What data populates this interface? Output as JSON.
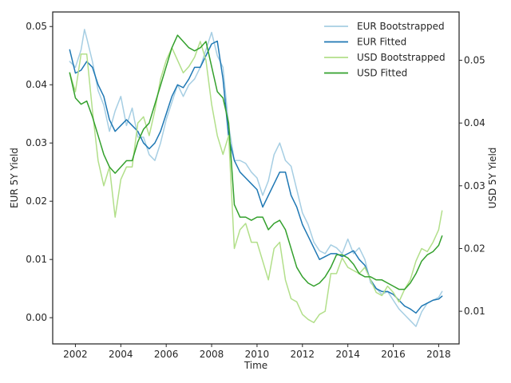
{
  "chart_data": {
    "type": "line",
    "xlabel": "Time",
    "ylabel_left": "EUR 5Y Yield",
    "ylabel_right": "USD 5Y Yield",
    "xlim": [
      2001.0,
      2018.9
    ],
    "ylim_left": [
      -0.0045,
      0.0525
    ],
    "ylim_right": [
      0.0048,
      0.0577
    ],
    "xticks": [
      2002,
      2004,
      2006,
      2008,
      2010,
      2012,
      2014,
      2016,
      2018
    ],
    "xtick_labels": [
      "2002",
      "2004",
      "2006",
      "2008",
      "2010",
      "2012",
      "2014",
      "2016",
      "2018"
    ],
    "yticks_left": [
      0.0,
      0.01,
      0.02,
      0.03,
      0.04,
      0.05
    ],
    "ytick_labels_left": [
      "0.00",
      "0.01",
      "0.02",
      "0.03",
      "0.04",
      "0.05"
    ],
    "yticks_right": [
      0.01,
      0.02,
      0.03,
      0.04,
      0.05
    ],
    "ytick_labels_right": [
      "0.01",
      "0.02",
      "0.03",
      "0.04",
      "0.05"
    ],
    "grid": false,
    "legend_position": "top-right",
    "series": [
      {
        "name": "EUR Bootstrapped",
        "axis": "left",
        "color": "#a6cee3",
        "x": [
          2001.75,
          2002.0,
          2002.25,
          2002.4,
          2002.5,
          2002.75,
          2003.0,
          2003.25,
          2003.5,
          2003.75,
          2004.0,
          2004.25,
          2004.5,
          2004.75,
          2005.0,
          2005.25,
          2005.5,
          2005.75,
          2006.0,
          2006.25,
          2006.5,
          2006.75,
          2007.0,
          2007.25,
          2007.5,
          2007.75,
          2008.0,
          2008.25,
          2008.5,
          2008.75,
          2009.0,
          2009.25,
          2009.5,
          2009.75,
          2010.0,
          2010.25,
          2010.5,
          2010.75,
          2011.0,
          2011.25,
          2011.5,
          2011.75,
          2012.0,
          2012.25,
          2012.5,
          2012.75,
          2013.0,
          2013.25,
          2013.5,
          2013.75,
          2014.0,
          2014.25,
          2014.5,
          2014.75,
          2015.0,
          2015.25,
          2015.5,
          2015.75,
          2016.0,
          2016.25,
          2016.5,
          2016.75,
          2017.0,
          2017.25,
          2017.5,
          2017.75,
          2018.0,
          2018.15
        ],
        "values": [
          0.044,
          0.043,
          0.046,
          0.0495,
          0.048,
          0.044,
          0.039,
          0.0365,
          0.032,
          0.0355,
          0.038,
          0.033,
          0.036,
          0.031,
          0.031,
          0.028,
          0.027,
          0.03,
          0.034,
          0.037,
          0.04,
          0.038,
          0.04,
          0.041,
          0.043,
          0.046,
          0.049,
          0.045,
          0.043,
          0.033,
          0.027,
          0.027,
          0.0265,
          0.025,
          0.024,
          0.021,
          0.0235,
          0.028,
          0.03,
          0.027,
          0.026,
          0.022,
          0.018,
          0.016,
          0.013,
          0.0115,
          0.011,
          0.0125,
          0.012,
          0.011,
          0.0135,
          0.011,
          0.012,
          0.01,
          0.006,
          0.005,
          0.004,
          0.0045,
          0.003,
          0.0015,
          0.0005,
          -0.0005,
          -0.0015,
          0.001,
          0.0025,
          0.003,
          0.0035,
          0.0045
        ]
      },
      {
        "name": "EUR Fitted",
        "axis": "left",
        "color": "#1f78b4",
        "x": [
          2001.75,
          2002.0,
          2002.25,
          2002.5,
          2002.75,
          2003.0,
          2003.25,
          2003.5,
          2003.75,
          2004.0,
          2004.25,
          2004.5,
          2004.75,
          2005.0,
          2005.25,
          2005.5,
          2005.75,
          2006.0,
          2006.25,
          2006.5,
          2006.75,
          2007.0,
          2007.25,
          2007.5,
          2007.75,
          2008.0,
          2008.25,
          2008.5,
          2008.75,
          2009.0,
          2009.25,
          2009.5,
          2009.75,
          2010.0,
          2010.25,
          2010.5,
          2010.75,
          2011.0,
          2011.25,
          2011.5,
          2011.75,
          2012.0,
          2012.25,
          2012.5,
          2012.75,
          2013.0,
          2013.25,
          2013.5,
          2013.75,
          2014.0,
          2014.25,
          2014.5,
          2014.75,
          2015.0,
          2015.25,
          2015.5,
          2015.75,
          2016.0,
          2016.25,
          2016.5,
          2016.75,
          2017.0,
          2017.25,
          2017.5,
          2017.75,
          2018.0,
          2018.15
        ],
        "values": [
          0.046,
          0.042,
          0.0425,
          0.044,
          0.043,
          0.04,
          0.038,
          0.034,
          0.032,
          0.033,
          0.034,
          0.033,
          0.032,
          0.03,
          0.029,
          0.03,
          0.032,
          0.035,
          0.038,
          0.04,
          0.0395,
          0.041,
          0.043,
          0.043,
          0.045,
          0.047,
          0.0475,
          0.041,
          0.031,
          0.027,
          0.025,
          0.024,
          0.023,
          0.022,
          0.019,
          0.021,
          0.023,
          0.025,
          0.025,
          0.021,
          0.019,
          0.016,
          0.014,
          0.012,
          0.01,
          0.0105,
          0.011,
          0.011,
          0.0105,
          0.011,
          0.0115,
          0.01,
          0.009,
          0.0065,
          0.005,
          0.0045,
          0.0045,
          0.004,
          0.003,
          0.002,
          0.0015,
          0.0008,
          0.002,
          0.0025,
          0.003,
          0.0032,
          0.0037
        ]
      },
      {
        "name": "USD Bootstrapped",
        "axis": "right",
        "color": "#b2df8a",
        "x": [
          2001.75,
          2002.0,
          2002.25,
          2002.5,
          2002.75,
          2003.0,
          2003.25,
          2003.5,
          2003.75,
          2004.0,
          2004.25,
          2004.5,
          2004.75,
          2005.0,
          2005.25,
          2005.5,
          2005.75,
          2006.0,
          2006.25,
          2006.5,
          2006.75,
          2007.0,
          2007.25,
          2007.5,
          2007.75,
          2008.0,
          2008.25,
          2008.5,
          2008.75,
          2009.0,
          2009.25,
          2009.5,
          2009.75,
          2010.0,
          2010.25,
          2010.5,
          2010.75,
          2011.0,
          2011.25,
          2011.5,
          2011.75,
          2012.0,
          2012.25,
          2012.5,
          2012.75,
          2013.0,
          2013.25,
          2013.5,
          2013.75,
          2014.0,
          2014.25,
          2014.5,
          2014.75,
          2015.0,
          2015.25,
          2015.5,
          2015.75,
          2016.0,
          2016.25,
          2016.5,
          2016.75,
          2017.0,
          2017.25,
          2017.5,
          2017.75,
          2018.0,
          2018.15
        ],
        "values": [
          0.048,
          0.045,
          0.051,
          0.051,
          0.042,
          0.034,
          0.03,
          0.033,
          0.025,
          0.031,
          0.033,
          0.033,
          0.04,
          0.041,
          0.038,
          0.042,
          0.047,
          0.05,
          0.052,
          0.05,
          0.048,
          0.049,
          0.0505,
          0.053,
          0.05,
          0.043,
          0.038,
          0.035,
          0.038,
          0.02,
          0.023,
          0.024,
          0.021,
          0.021,
          0.018,
          0.015,
          0.02,
          0.021,
          0.015,
          0.012,
          0.0115,
          0.0095,
          0.0087,
          0.0082,
          0.0095,
          0.01,
          0.016,
          0.016,
          0.0185,
          0.017,
          0.0165,
          0.016,
          0.017,
          0.015,
          0.013,
          0.0125,
          0.014,
          0.013,
          0.0115,
          0.0135,
          0.015,
          0.018,
          0.02,
          0.0195,
          0.021,
          0.023,
          0.026
        ]
      },
      {
        "name": "USD Fitted",
        "axis": "right",
        "color": "#33a02c",
        "x": [
          2001.75,
          2002.0,
          2002.25,
          2002.5,
          2002.75,
          2003.0,
          2003.25,
          2003.5,
          2003.75,
          2004.0,
          2004.25,
          2004.5,
          2004.75,
          2005.0,
          2005.25,
          2005.5,
          2005.75,
          2006.0,
          2006.25,
          2006.5,
          2006.75,
          2007.0,
          2007.25,
          2007.5,
          2007.75,
          2008.0,
          2008.25,
          2008.5,
          2008.75,
          2009.0,
          2009.25,
          2009.5,
          2009.75,
          2010.0,
          2010.25,
          2010.5,
          2010.75,
          2011.0,
          2011.25,
          2011.5,
          2011.75,
          2012.0,
          2012.25,
          2012.5,
          2012.75,
          2013.0,
          2013.25,
          2013.5,
          2013.75,
          2014.0,
          2014.25,
          2014.5,
          2014.75,
          2015.0,
          2015.25,
          2015.5,
          2015.75,
          2016.0,
          2016.25,
          2016.5,
          2016.75,
          2017.0,
          2017.25,
          2017.5,
          2017.75,
          2018.0,
          2018.15
        ],
        "values": [
          0.048,
          0.044,
          0.043,
          0.0435,
          0.041,
          0.038,
          0.035,
          0.033,
          0.032,
          0.033,
          0.034,
          0.034,
          0.037,
          0.039,
          0.04,
          0.043,
          0.046,
          0.049,
          0.052,
          0.054,
          0.053,
          0.052,
          0.0515,
          0.052,
          0.053,
          0.049,
          0.045,
          0.044,
          0.04,
          0.027,
          0.025,
          0.025,
          0.0245,
          0.025,
          0.025,
          0.023,
          0.024,
          0.0245,
          0.023,
          0.02,
          0.017,
          0.0155,
          0.0145,
          0.014,
          0.0145,
          0.0155,
          0.017,
          0.019,
          0.019,
          0.0185,
          0.0175,
          0.016,
          0.0155,
          0.0155,
          0.015,
          0.015,
          0.0145,
          0.014,
          0.0135,
          0.0135,
          0.0145,
          0.016,
          0.018,
          0.019,
          0.0195,
          0.0205,
          0.022
        ]
      }
    ]
  }
}
